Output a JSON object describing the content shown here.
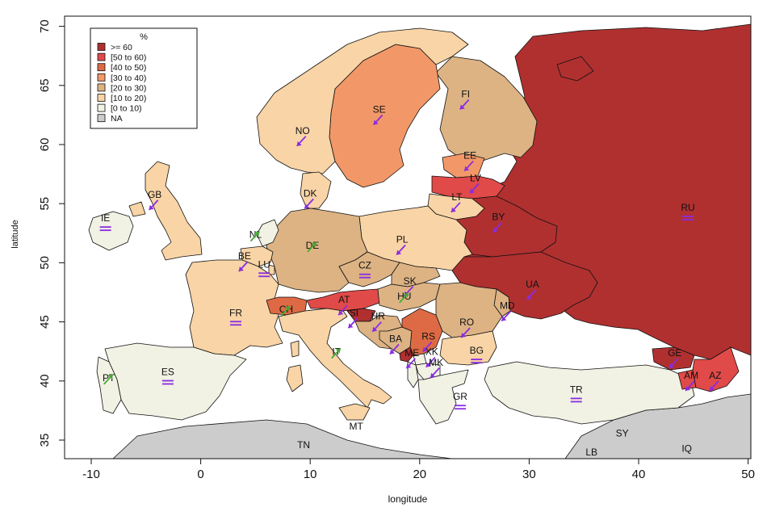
{
  "axes": {
    "xlabel": "longitude",
    "ylabel": "latitude",
    "xticks": [
      "-10",
      "0",
      "10",
      "20",
      "30",
      "40",
      "50"
    ],
    "yticks": [
      "35",
      "40",
      "45",
      "50",
      "55",
      "60",
      "65",
      "70"
    ]
  },
  "legend": {
    "title": "%",
    "items": [
      {
        "label": ">= 60",
        "color": "#b03030"
      },
      {
        "label": "[50 to 60)",
        "color": "#e04a48"
      },
      {
        "label": "[40 to 50)",
        "color": "#dd6a44"
      },
      {
        "label": "[30 to 40)",
        "color": "#f29868"
      },
      {
        "label": "[20 to 30)",
        "color": "#ddb384"
      },
      {
        "label": "[10 to 20)",
        "color": "#f8d4a6"
      },
      {
        "label": "[0 to 10)",
        "color": "#f1f1e4"
      },
      {
        "label": "NA",
        "color": "#cccccc"
      }
    ]
  },
  "countries": [
    {
      "code": "RU",
      "lon": 44.5,
      "lat": 54.4,
      "trend": "stable"
    },
    {
      "code": "FI",
      "lon": 24.2,
      "lat": 64.0,
      "trend": "down"
    },
    {
      "code": "SE",
      "lon": 16.3,
      "lat": 62.7,
      "trend": "down"
    },
    {
      "code": "NO",
      "lon": 9.3,
      "lat": 60.9,
      "trend": "down"
    },
    {
      "code": "EE",
      "lon": 24.6,
      "lat": 58.8,
      "trend": "down"
    },
    {
      "code": "LV",
      "lon": 25.1,
      "lat": 56.9,
      "trend": "down"
    },
    {
      "code": "LT",
      "lon": 23.4,
      "lat": 55.3,
      "trend": "down"
    },
    {
      "code": "BY",
      "lon": 27.2,
      "lat": 53.6,
      "trend": "down"
    },
    {
      "code": "DK",
      "lon": 10.0,
      "lat": 55.6,
      "trend": "down"
    },
    {
      "code": "GB",
      "lon": -4.2,
      "lat": 55.5,
      "trend": "down"
    },
    {
      "code": "IE",
      "lon": -8.7,
      "lat": 53.5,
      "trend": "stable"
    },
    {
      "code": "NL",
      "lon": 5.0,
      "lat": 52.1,
      "trend": "up"
    },
    {
      "code": "BE",
      "lon": 4.0,
      "lat": 50.3,
      "trend": "down"
    },
    {
      "code": "LU",
      "lon": 5.8,
      "lat": 49.6,
      "trend": "stable"
    },
    {
      "code": "DE",
      "lon": 10.2,
      "lat": 51.2,
      "trend": "up"
    },
    {
      "code": "PL",
      "lon": 18.4,
      "lat": 51.7,
      "trend": "down"
    },
    {
      "code": "CZ",
      "lon": 15.0,
      "lat": 49.5,
      "trend": "stable"
    },
    {
      "code": "SK",
      "lon": 19.1,
      "lat": 48.2,
      "trend": "down"
    },
    {
      "code": "UA",
      "lon": 30.3,
      "lat": 47.9,
      "trend": "down"
    },
    {
      "code": "HU",
      "lon": 18.6,
      "lat": 46.9,
      "trend": "up"
    },
    {
      "code": "AT",
      "lon": 13.1,
      "lat": 46.6,
      "trend": "down"
    },
    {
      "code": "CH",
      "lon": 7.8,
      "lat": 45.8,
      "trend": "up"
    },
    {
      "code": "MD",
      "lon": 28.0,
      "lat": 46.1,
      "trend": "down"
    },
    {
      "code": "FR",
      "lon": 3.2,
      "lat": 45.5,
      "trend": "stable"
    },
    {
      "code": "SI",
      "lon": 14.0,
      "lat": 45.5,
      "trend": "down"
    },
    {
      "code": "HR",
      "lon": 16.2,
      "lat": 45.2,
      "trend": "down"
    },
    {
      "code": "RO",
      "lon": 24.3,
      "lat": 44.7,
      "trend": "down"
    },
    {
      "code": "BA",
      "lon": 17.8,
      "lat": 43.3,
      "trend": "down"
    },
    {
      "code": "RS",
      "lon": 20.8,
      "lat": 43.5,
      "trend": "down"
    },
    {
      "code": "ME",
      "lon": 19.3,
      "lat": 42.1,
      "trend": "down"
    },
    {
      "code": "XK",
      "lon": 21.1,
      "lat": 42.2,
      "trend": "down"
    },
    {
      "code": "BG",
      "lon": 25.2,
      "lat": 42.3,
      "trend": "stable"
    },
    {
      "code": "MK",
      "lon": 21.5,
      "lat": 41.3,
      "trend": "down"
    },
    {
      "code": "IT",
      "lon": 12.4,
      "lat": 42.2,
      "trend": "up"
    },
    {
      "code": "GE",
      "lon": 43.3,
      "lat": 42.1,
      "trend": "down"
    },
    {
      "code": "AM",
      "lon": 44.8,
      "lat": 40.2,
      "trend": "down"
    },
    {
      "code": "AZ",
      "lon": 47.0,
      "lat": 40.2,
      "trend": "down"
    },
    {
      "code": "PT",
      "lon": -8.4,
      "lat": 40.0,
      "trend": "up"
    },
    {
      "code": "ES",
      "lon": -3.0,
      "lat": 40.5,
      "trend": "stable"
    },
    {
      "code": "TR",
      "lon": 34.3,
      "lat": 39.0,
      "trend": "stable"
    },
    {
      "code": "GR",
      "lon": 23.7,
      "lat": 38.4,
      "trend": "stable"
    },
    {
      "code": "MT",
      "lon": 14.2,
      "lat": 35.9,
      "trend": null
    },
    {
      "code": "TN",
      "lon": 9.4,
      "lat": 34.3,
      "trend": null
    },
    {
      "code": "SY",
      "lon": 38.5,
      "lat": 35.3,
      "trend": null
    },
    {
      "code": "IQ",
      "lon": 44.4,
      "lat": 34.0,
      "trend": null
    },
    {
      "code": "LB",
      "lon": 35.7,
      "lat": 33.7,
      "trend": null
    }
  ],
  "colors": {
    "arrow_down": "#8a2be2",
    "arrow_up": "#44aa33",
    "stable": "#8a2be2",
    "sea": "#ffffff",
    "outline": "#111111"
  }
}
